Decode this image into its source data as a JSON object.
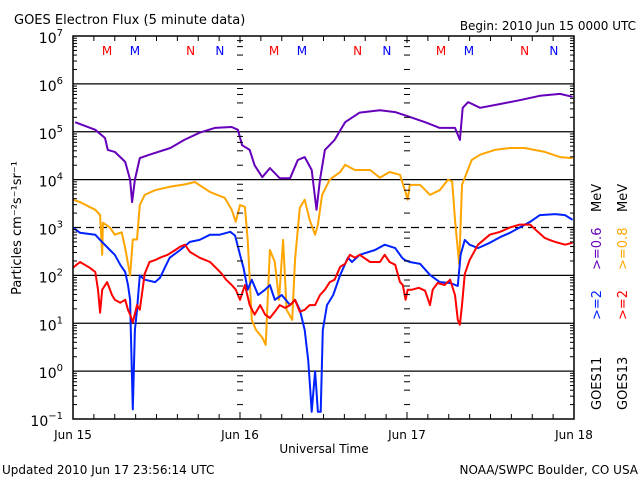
{
  "chart_data": {
    "type": "line",
    "title": "GOES Electron Flux (5 minute data)",
    "begin_label": "Begin: 2010 Jun 15 0000 UTC",
    "xlabel": "Universal Time",
    "ylabel": "Particles cm⁻²s⁻¹sr⁻¹",
    "x_units": "hours since 2010 Jun 15 0000 UTC",
    "xlim": [
      0,
      72
    ],
    "x_ticks": [
      {
        "h": 0,
        "label": "Jun 15"
      },
      {
        "h": 24,
        "label": "Jun 16"
      },
      {
        "h": 48,
        "label": "Jun 17"
      },
      {
        "h": 72,
        "label": "Jun 18"
      }
    ],
    "yscale": "log",
    "ylim": [
      0.1,
      10000000
    ],
    "y_tick_exponents": [
      7,
      6,
      5,
      4,
      3,
      2,
      1,
      0,
      -1
    ],
    "y_tick_base": "10",
    "threshold_line_exponent": 3,
    "grid": true,
    "legend_placement": "right",
    "legend": [
      {
        "sat": "GOES11",
        "low": ">=2",
        "high": ">=0.6",
        "unit": "MeV"
      },
      {
        "sat": "GOES13",
        "low": ">=2",
        "high": ">=0.8",
        "unit": "MeV"
      }
    ],
    "markers": [
      {
        "label": "M",
        "h": 4.9,
        "color": "#ff0000"
      },
      {
        "label": "M",
        "h": 8.9,
        "color": "#0000ff"
      },
      {
        "label": "N",
        "h": 16.9,
        "color": "#ff0000"
      },
      {
        "label": "N",
        "h": 21.1,
        "color": "#0000ff"
      },
      {
        "label": "M",
        "h": 28.9,
        "color": "#ff0000"
      },
      {
        "label": "M",
        "h": 32.9,
        "color": "#0000ff"
      },
      {
        "label": "N",
        "h": 40.9,
        "color": "#ff0000"
      },
      {
        "label": "N",
        "h": 45.1,
        "color": "#0000ff"
      },
      {
        "label": "M",
        "h": 52.9,
        "color": "#ff0000"
      },
      {
        "label": "M",
        "h": 56.9,
        "color": "#0000ff"
      },
      {
        "label": "N",
        "h": 64.9,
        "color": "#ff0000"
      },
      {
        "label": "N",
        "h": 69.1,
        "color": "#0000ff"
      }
    ],
    "series_value_format": "[hour, log10(flux)]",
    "series": [
      {
        "name": "GOES11 >=0.6 MeV",
        "color": "#6600bb",
        "points": [
          [
            0.3,
            5.2
          ],
          [
            3.2,
            5.04
          ],
          [
            4.6,
            4.87
          ],
          [
            5,
            4.62
          ],
          [
            6,
            4.58
          ],
          [
            7.5,
            4.37
          ],
          [
            8.2,
            4.0
          ],
          [
            8.5,
            3.53
          ],
          [
            8.9,
            4.0
          ],
          [
            9.6,
            4.45
          ],
          [
            11,
            4.52
          ],
          [
            14,
            4.66
          ],
          [
            16,
            4.83
          ],
          [
            18.2,
            4.98
          ],
          [
            20.4,
            5.08
          ],
          [
            22.8,
            5.1
          ],
          [
            23.7,
            5.04
          ],
          [
            24.3,
            4.72
          ],
          [
            25.4,
            4.62
          ],
          [
            26.1,
            4.3
          ],
          [
            27.2,
            4.05
          ],
          [
            28.3,
            4.24
          ],
          [
            29.7,
            4.03
          ],
          [
            31.2,
            4.03
          ],
          [
            32.3,
            4.41
          ],
          [
            33.3,
            4.47
          ],
          [
            34.3,
            4.2
          ],
          [
            35,
            3.37
          ],
          [
            35.5,
            4.0
          ],
          [
            36.2,
            4.62
          ],
          [
            37.6,
            4.83
          ],
          [
            39.1,
            5.2
          ],
          [
            41.2,
            5.4
          ],
          [
            44.1,
            5.45
          ],
          [
            46.3,
            5.41
          ],
          [
            48.4,
            5.31
          ],
          [
            50.6,
            5.2
          ],
          [
            52.7,
            5.08
          ],
          [
            54.9,
            5.08
          ],
          [
            55.6,
            4.83
          ],
          [
            56,
            5.5
          ],
          [
            56.8,
            5.62
          ],
          [
            58.5,
            5.5
          ],
          [
            61.4,
            5.58
          ],
          [
            64.2,
            5.66
          ],
          [
            67.1,
            5.75
          ],
          [
            70,
            5.79
          ],
          [
            71.8,
            5.73
          ]
        ]
      },
      {
        "name": "GOES13 >=0.8 MeV",
        "color": "#ffa500",
        "points": [
          [
            0,
            3.58
          ],
          [
            1,
            3.53
          ],
          [
            3.2,
            3.37
          ],
          [
            3.9,
            3.26
          ],
          [
            4.2,
            2.43
          ],
          [
            4.3,
            3.1
          ],
          [
            5.3,
            3.0
          ],
          [
            6,
            2.85
          ],
          [
            7,
            2.9
          ],
          [
            7.5,
            2.57
          ],
          [
            8.2,
            2.0
          ],
          [
            8.6,
            2.75
          ],
          [
            9.2,
            2.75
          ],
          [
            9.6,
            3.47
          ],
          [
            10.3,
            3.68
          ],
          [
            11.8,
            3.78
          ],
          [
            13.9,
            3.85
          ],
          [
            16.1,
            3.9
          ],
          [
            17.5,
            3.95
          ],
          [
            19.7,
            3.74
          ],
          [
            21.8,
            3.62
          ],
          [
            22.8,
            3.37
          ],
          [
            23.4,
            3.12
          ],
          [
            24,
            3.47
          ],
          [
            24.7,
            3.43
          ],
          [
            25.1,
            2.74
          ],
          [
            25.7,
            1.07
          ],
          [
            26.3,
            0.86
          ],
          [
            27.2,
            0.7
          ],
          [
            27.7,
            0.55
          ],
          [
            28.3,
            2.53
          ],
          [
            29,
            2.28
          ],
          [
            29.6,
            1.49
          ],
          [
            30.2,
            2.74
          ],
          [
            30.7,
            1.28
          ],
          [
            31.5,
            1.07
          ],
          [
            31.9,
            2.32
          ],
          [
            32.6,
            3.41
          ],
          [
            33.3,
            3.58
          ],
          [
            34,
            3.16
          ],
          [
            34.8,
            2.85
          ],
          [
            35.2,
            3.06
          ],
          [
            35.8,
            3.68
          ],
          [
            36.9,
            4.0
          ],
          [
            38.4,
            4.16
          ],
          [
            39.1,
            4.31
          ],
          [
            40.5,
            4.2
          ],
          [
            42.7,
            4.2
          ],
          [
            44.1,
            4.04
          ],
          [
            45.5,
            4.16
          ],
          [
            47,
            4.1
          ],
          [
            47.7,
            3.78
          ],
          [
            48.1,
            3.58
          ],
          [
            48.4,
            3.89
          ],
          [
            49.9,
            3.89
          ],
          [
            51.3,
            3.68
          ],
          [
            52.7,
            3.78
          ],
          [
            53.9,
            4.0
          ],
          [
            54.5,
            3.96
          ],
          [
            54.9,
            3.16
          ],
          [
            55.5,
            2.23
          ],
          [
            55.9,
            3.89
          ],
          [
            56.3,
            4.04
          ],
          [
            57.3,
            4.41
          ],
          [
            58.5,
            4.52
          ],
          [
            60.6,
            4.62
          ],
          [
            62.8,
            4.66
          ],
          [
            64.9,
            4.66
          ],
          [
            67.8,
            4.58
          ],
          [
            70,
            4.47
          ],
          [
            71.8,
            4.45
          ]
        ]
      },
      {
        "name": "GOES11 >=2 MeV",
        "color": "#0022ff",
        "points": [
          [
            0,
            3.0
          ],
          [
            1,
            2.89
          ],
          [
            3.2,
            2.85
          ],
          [
            3.9,
            2.74
          ],
          [
            5.3,
            2.53
          ],
          [
            6,
            2.43
          ],
          [
            6.8,
            2.22
          ],
          [
            7.5,
            2.07
          ],
          [
            7.9,
            1.8
          ],
          [
            8.2,
            1.49
          ],
          [
            8.3,
            0.86
          ],
          [
            8.6,
            -0.8
          ],
          [
            8.9,
            0.86
          ],
          [
            9.2,
            1.28
          ],
          [
            9.6,
            2.0
          ],
          [
            10.3,
            1.91
          ],
          [
            11.8,
            1.86
          ],
          [
            12.5,
            1.95
          ],
          [
            13.2,
            2.16
          ],
          [
            13.9,
            2.37
          ],
          [
            15.4,
            2.53
          ],
          [
            16.8,
            2.7
          ],
          [
            18.2,
            2.74
          ],
          [
            19.7,
            2.85
          ],
          [
            21.1,
            2.85
          ],
          [
            22.6,
            2.91
          ],
          [
            23.3,
            2.83
          ],
          [
            24,
            2.43
          ],
          [
            24.5,
            2.16
          ],
          [
            25.1,
            1.7
          ],
          [
            25.7,
            1.91
          ],
          [
            26.6,
            1.59
          ],
          [
            27.6,
            1.7
          ],
          [
            28.3,
            1.8
          ],
          [
            29,
            1.49
          ],
          [
            30,
            1.59
          ],
          [
            31.2,
            1.38
          ],
          [
            31.9,
            1.49
          ],
          [
            32.6,
            1.28
          ],
          [
            33.3,
            0.86
          ],
          [
            33.8,
            0.23
          ],
          [
            34.1,
            -0.4
          ],
          [
            34.3,
            -0.85
          ],
          [
            34.8,
            0.0
          ],
          [
            35.2,
            -0.85
          ],
          [
            35.6,
            -0.85
          ],
          [
            35.9,
            0.86
          ],
          [
            36.5,
            1.38
          ],
          [
            37.4,
            1.59
          ],
          [
            38.4,
            2.01
          ],
          [
            39.5,
            2.37
          ],
          [
            40.1,
            2.28
          ],
          [
            41.2,
            2.43
          ],
          [
            43.4,
            2.53
          ],
          [
            44.8,
            2.64
          ],
          [
            46.3,
            2.57
          ],
          [
            47.3,
            2.37
          ],
          [
            47.7,
            2.32
          ],
          [
            48.4,
            2.28
          ],
          [
            49.9,
            2.24
          ],
          [
            51.3,
            2.01
          ],
          [
            52.7,
            1.86
          ],
          [
            54.2,
            1.84
          ],
          [
            55.3,
            1.78
          ],
          [
            55.7,
            2.43
          ],
          [
            56.3,
            2.74
          ],
          [
            57,
            2.64
          ],
          [
            58.2,
            2.57
          ],
          [
            59.9,
            2.68
          ],
          [
            61.4,
            2.8
          ],
          [
            62.8,
            2.89
          ],
          [
            64.2,
            3.0
          ],
          [
            65.7,
            3.12
          ],
          [
            67.1,
            3.26
          ],
          [
            69.3,
            3.28
          ],
          [
            70.7,
            3.26
          ],
          [
            71.8,
            3.16
          ]
        ]
      },
      {
        "name": "GOES13 >=2 MeV",
        "color": "#ff0000",
        "points": [
          [
            0,
            2.16
          ],
          [
            1,
            2.28
          ],
          [
            2.4,
            2.16
          ],
          [
            3.2,
            2.07
          ],
          [
            3.6,
            1.7
          ],
          [
            3.9,
            1.22
          ],
          [
            4.2,
            1.7
          ],
          [
            4.9,
            1.86
          ],
          [
            5.6,
            1.59
          ],
          [
            6,
            1.49
          ],
          [
            6.8,
            1.43
          ],
          [
            7.5,
            1.49
          ],
          [
            7.9,
            1.28
          ],
          [
            8.2,
            1.18
          ],
          [
            8.6,
            1.02
          ],
          [
            9.2,
            1.38
          ],
          [
            9.6,
            1.28
          ],
          [
            10.3,
            2.03
          ],
          [
            11,
            2.28
          ],
          [
            11.8,
            2.32
          ],
          [
            12.5,
            2.37
          ],
          [
            13.6,
            2.43
          ],
          [
            14.7,
            2.53
          ],
          [
            15.4,
            2.6
          ],
          [
            16.1,
            2.64
          ],
          [
            16.8,
            2.49
          ],
          [
            18.2,
            2.37
          ],
          [
            19.7,
            2.28
          ],
          [
            20.8,
            2.12
          ],
          [
            21.4,
            2.03
          ],
          [
            22,
            1.91
          ],
          [
            22.8,
            1.8
          ],
          [
            23.4,
            1.7
          ],
          [
            24,
            1.49
          ],
          [
            24.7,
            1.8
          ],
          [
            25.4,
            1.38
          ],
          [
            26.1,
            1.18
          ],
          [
            26.9,
            1.38
          ],
          [
            27.6,
            1.18
          ],
          [
            28.3,
            1.11
          ],
          [
            29,
            1.24
          ],
          [
            29.7,
            1.38
          ],
          [
            30.5,
            1.32
          ],
          [
            31.2,
            1.38
          ],
          [
            31.9,
            1.49
          ],
          [
            32.6,
            1.24
          ],
          [
            33.3,
            1.28
          ],
          [
            34,
            1.38
          ],
          [
            34.8,
            1.38
          ],
          [
            35.5,
            1.59
          ],
          [
            36.2,
            1.7
          ],
          [
            36.9,
            1.86
          ],
          [
            37.6,
            1.91
          ],
          [
            38.4,
            2.18
          ],
          [
            39.1,
            2.24
          ],
          [
            39.8,
            2.43
          ],
          [
            40.5,
            2.37
          ],
          [
            41.2,
            2.43
          ],
          [
            42.7,
            2.28
          ],
          [
            44.1,
            2.28
          ],
          [
            44.8,
            2.43
          ],
          [
            45.5,
            2.28
          ],
          [
            46.3,
            2.22
          ],
          [
            47,
            1.86
          ],
          [
            47.4,
            1.8
          ],
          [
            47.8,
            1.49
          ],
          [
            48.1,
            1.7
          ],
          [
            48.7,
            1.7
          ],
          [
            49.7,
            1.74
          ],
          [
            50.6,
            1.68
          ],
          [
            51.3,
            1.38
          ],
          [
            51.7,
            1.7
          ],
          [
            52.4,
            1.84
          ],
          [
            53.4,
            1.8
          ],
          [
            54.2,
            1.91
          ],
          [
            54.9,
            1.59
          ],
          [
            55.3,
            1.07
          ],
          [
            55.6,
            0.97
          ],
          [
            55.9,
            1.38
          ],
          [
            56.3,
            2.03
          ],
          [
            57,
            2.32
          ],
          [
            58.2,
            2.64
          ],
          [
            59.9,
            2.85
          ],
          [
            61.4,
            2.91
          ],
          [
            62.8,
            3.0
          ],
          [
            64.2,
            3.06
          ],
          [
            65.7,
            3.06
          ],
          [
            66.8,
            2.91
          ],
          [
            67.8,
            2.78
          ],
          [
            68.5,
            2.74
          ],
          [
            69.3,
            2.7
          ],
          [
            70.7,
            2.64
          ],
          [
            71.8,
            2.68
          ]
        ]
      }
    ]
  },
  "footer": {
    "updated": "Updated 2010 Jun 17 23:56:14 UTC",
    "credit": "NOAA/SWPC Boulder, CO USA"
  }
}
